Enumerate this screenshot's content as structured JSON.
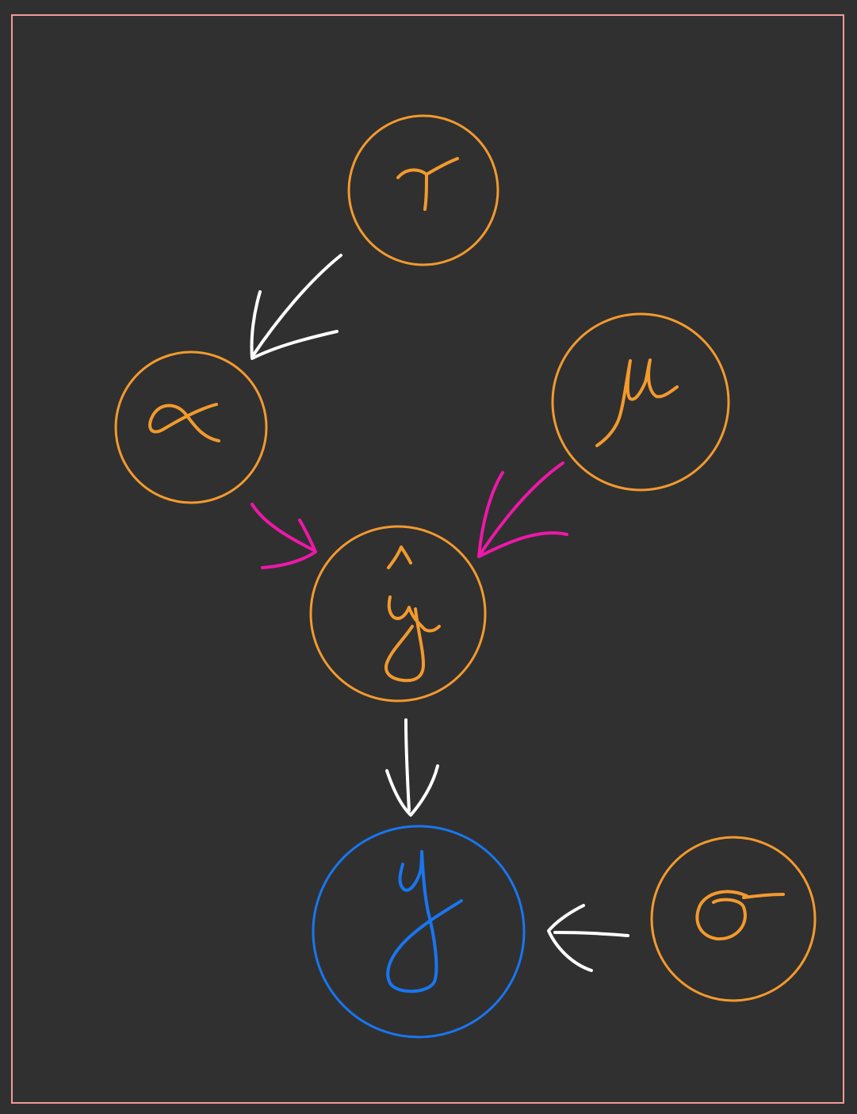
{
  "diagram": {
    "type": "hand-drawn directed graph",
    "colors": {
      "background": "#303030",
      "frame": "#f29a9a",
      "latent_node": "#f39a2e",
      "observed_node": "#1976f0",
      "arrow_default": "#ffffff",
      "arrow_highlight": "#ee18a8"
    },
    "nodes": [
      {
        "id": "tau",
        "symbol": "τ",
        "kind": "latent"
      },
      {
        "id": "alpha",
        "symbol": "α",
        "kind": "latent"
      },
      {
        "id": "mu",
        "symbol": "μ",
        "kind": "latent"
      },
      {
        "id": "y_hat",
        "symbol": "ŷ",
        "kind": "latent"
      },
      {
        "id": "y",
        "symbol": "y",
        "kind": "observed"
      },
      {
        "id": "sigma",
        "symbol": "σ",
        "kind": "latent"
      }
    ],
    "edges": [
      {
        "from": "tau",
        "to": "alpha",
        "style": "default"
      },
      {
        "from": "alpha",
        "to": "y_hat",
        "style": "highlight"
      },
      {
        "from": "mu",
        "to": "y_hat",
        "style": "highlight"
      },
      {
        "from": "y_hat",
        "to": "y",
        "style": "default"
      },
      {
        "from": "sigma",
        "to": "y",
        "style": "default"
      }
    ]
  }
}
